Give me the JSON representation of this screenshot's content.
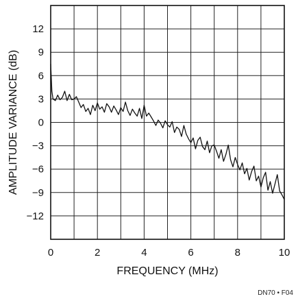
{
  "chart_data": {
    "type": "line",
    "title": "",
    "xlabel": "FREQUENCY (MHz)",
    "ylabel": "AMPLITUDE VARIANCE (dB)",
    "xlim": [
      0,
      10
    ],
    "ylim": [
      -15,
      15
    ],
    "xticks": [
      0,
      2,
      4,
      6,
      8,
      10
    ],
    "yticks": [
      -12,
      -9,
      -6,
      -3,
      0,
      3,
      6,
      9,
      12
    ],
    "grid": true,
    "series": [
      {
        "x": [
          0,
          0.05,
          0.1,
          0.2,
          0.3,
          0.4,
          0.5,
          0.6,
          0.7,
          0.8,
          0.9,
          1.0,
          1.1,
          1.2,
          1.3,
          1.4,
          1.5,
          1.6,
          1.7,
          1.8,
          1.9,
          2.0,
          2.1,
          2.2,
          2.3,
          2.4,
          2.5,
          2.6,
          2.7,
          2.8,
          2.9,
          3.0,
          3.1,
          3.2,
          3.3,
          3.4,
          3.5,
          3.6,
          3.7,
          3.8,
          3.9,
          4.0,
          4.1,
          4.2,
          4.3,
          4.4,
          4.5,
          4.6,
          4.7,
          4.8,
          4.9,
          5.0,
          5.1,
          5.2,
          5.3,
          5.4,
          5.5,
          5.6,
          5.7,
          5.8,
          5.9,
          6.0,
          6.1,
          6.2,
          6.3,
          6.4,
          6.5,
          6.6,
          6.7,
          6.8,
          6.9,
          7.0,
          7.1,
          7.2,
          7.3,
          7.4,
          7.5,
          7.6,
          7.7,
          7.8,
          7.9,
          8.0,
          8.1,
          8.2,
          8.3,
          8.4,
          8.5,
          8.6,
          8.7,
          8.8,
          8.9,
          9.0,
          9.1,
          9.2,
          9.3,
          9.4,
          9.5,
          9.6,
          9.7,
          9.8,
          9.9,
          10.0
        ],
        "y": [
          7.5,
          4.0,
          3.0,
          2.8,
          3.5,
          2.9,
          3.2,
          4.0,
          2.8,
          3.6,
          2.9,
          3.0,
          3.3,
          2.6,
          1.9,
          2.3,
          1.4,
          1.8,
          1.0,
          2.2,
          1.5,
          2.5,
          1.7,
          2.0,
          1.3,
          2.4,
          2.0,
          1.3,
          2.1,
          1.6,
          1.0,
          1.9,
          1.4,
          2.6,
          1.5,
          0.9,
          1.7,
          1.2,
          0.8,
          1.8,
          0.5,
          2.2,
          0.8,
          1.2,
          0.7,
          0.2,
          -0.4,
          0.3,
          -0.1,
          -0.7,
          0.2,
          -0.3,
          -0.6,
          0.1,
          -1.3,
          -0.6,
          -0.9,
          -1.8,
          -0.4,
          -1.5,
          -2.1,
          -2.6,
          -2.0,
          -3.4,
          -2.3,
          -1.9,
          -3.1,
          -3.5,
          -2.4,
          -3.9,
          -3.0,
          -2.9,
          -3.7,
          -4.6,
          -3.5,
          -5.0,
          -4.1,
          -2.9,
          -4.8,
          -5.7,
          -4.5,
          -5.4,
          -6.1,
          -5.2,
          -6.6,
          -5.9,
          -7.4,
          -6.3,
          -5.6,
          -7.5,
          -6.9,
          -8.3,
          -7.1,
          -6.4,
          -8.7,
          -7.6,
          -9.1,
          -7.9,
          -6.7,
          -8.8,
          -9.3,
          -9.9
        ]
      }
    ]
  },
  "figure_id": "DN70 • F04"
}
